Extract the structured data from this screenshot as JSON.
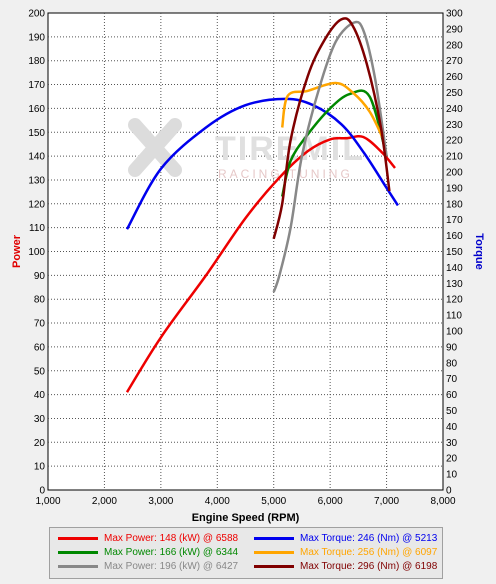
{
  "chart_data": {
    "type": "line",
    "title": "",
    "xlabel": "Engine Speed (RPM)",
    "ylabel_left": "Power",
    "ylabel_right": "Torque",
    "xlim": [
      1000,
      8000
    ],
    "ylim_left": [
      0,
      200
    ],
    "ylim_right": [
      0,
      300
    ],
    "x_ticks": [
      "1,000",
      "2,000",
      "3,000",
      "4,000",
      "5,000",
      "6,000",
      "7,000",
      "8,000"
    ],
    "y_left_ticks": [
      "0",
      "10",
      "20",
      "30",
      "40",
      "50",
      "60",
      "70",
      "80",
      "90",
      "100",
      "110",
      "120",
      "130",
      "140",
      "150",
      "160",
      "170",
      "180",
      "190",
      "200"
    ],
    "y_right_ticks": [
      "0",
      "10",
      "20",
      "30",
      "40",
      "50",
      "60",
      "70",
      "80",
      "90",
      "100",
      "110",
      "120",
      "130",
      "140",
      "150",
      "160",
      "170",
      "180",
      "190",
      "200",
      "210",
      "220",
      "230",
      "240",
      "250",
      "260",
      "270",
      "280",
      "290",
      "300"
    ],
    "grid": true,
    "watermark": "TIREMIL RACING TUNING",
    "series": [
      {
        "color": "#ee0000",
        "axis": "left",
        "kind": "power",
        "x": [
          2400,
          3000,
          3800,
          4500,
          5100,
          5600,
          6000,
          6300,
          6588,
          6900,
          7150
        ],
        "y": [
          41,
          64,
          90,
          114,
          131,
          142,
          147,
          147.5,
          148,
          142,
          135
        ]
      },
      {
        "color": "#0000ee",
        "axis": "right",
        "kind": "torque",
        "x": [
          2400,
          3000,
          3800,
          4500,
          5213,
          5700,
          6200,
          6600,
          7000,
          7200
        ],
        "y": [
          164,
          202,
          228,
          242,
          246,
          242,
          230,
          212,
          190,
          179
        ]
      },
      {
        "color": "#008800",
        "axis": "left",
        "kind": "power",
        "x": [
          5150,
          5300,
          5600,
          6000,
          6344,
          6700,
          7000
        ],
        "y": [
          123,
          138,
          149,
          160,
          166,
          165,
          140
        ]
      },
      {
        "color": "#ffa500",
        "axis": "right",
        "kind": "torque",
        "x": [
          5150,
          5250,
          5600,
          6097,
          6400,
          6700,
          6950
        ],
        "y": [
          228,
          248,
          251,
          256,
          250,
          238,
          220
        ]
      },
      {
        "color": "#888888",
        "axis": "left",
        "kind": "power",
        "x": [
          5000,
          5100,
          5300,
          5500,
          5800,
          6100,
          6427,
          6600,
          6800,
          7000
        ],
        "y": [
          83,
          90,
          110,
          140,
          168,
          188,
          196,
          192,
          172,
          140
        ]
      },
      {
        "color": "#800000",
        "axis": "right",
        "kind": "torque",
        "x": [
          5000,
          5150,
          5300,
          5600,
          5900,
          6198,
          6400,
          6650,
          6900,
          7050
        ],
        "y": [
          158,
          180,
          220,
          260,
          283,
          296,
          292,
          268,
          228,
          188
        ]
      }
    ],
    "legend": [
      {
        "label": "Max Power: 148 (kW) @ 6588",
        "color": "#ee0000"
      },
      {
        "label": "Max Torque: 246 (Nm) @ 5213",
        "color": "#0000ee"
      },
      {
        "label": "Max Power: 166 (kW) @ 6344",
        "color": "#008800"
      },
      {
        "label": "Max Torque: 256 (Nm) @ 6097",
        "color": "#ffa500"
      },
      {
        "label": "Max Power: 196 (kW) @ 6427",
        "color": "#888888"
      },
      {
        "label": "Max Torque: 296 (Nm) @ 6198",
        "color": "#800000"
      }
    ]
  }
}
